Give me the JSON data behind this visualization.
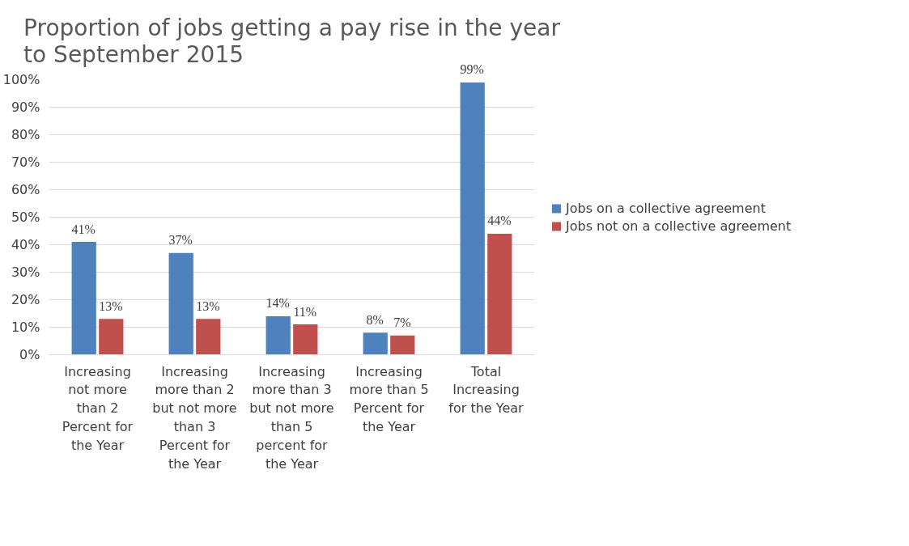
{
  "chart_data": {
    "type": "bar",
    "title": "Proportion of jobs getting a pay rise in the year to September 2015",
    "categories": [
      "Increasing not more than 2 Percent for the Year",
      "Increasing more than 2 but not more than 3 Percent for the Year",
      "Increasing more than 3 but not more than 5 percent for the Year",
      "Increasing more than 5 Percent for the Year",
      "Total Increasing for the Year"
    ],
    "series": [
      {
        "name": "Jobs on a collective agreement",
        "color": "#4f81bd",
        "values": [
          41,
          37,
          14,
          8,
          99
        ],
        "value_labels": [
          "41%",
          "37%",
          "14%",
          "8%",
          "99%"
        ]
      },
      {
        "name": "Jobs not on a collective agreement",
        "color": "#c0504d",
        "values": [
          13,
          13,
          11,
          7,
          44
        ],
        "value_labels": [
          "13%",
          "13%",
          "11%",
          "7%",
          "44%"
        ]
      }
    ],
    "ylim": [
      0,
      100
    ],
    "yticks": [
      {
        "value": 0,
        "label": "0%"
      },
      {
        "value": 10,
        "label": "10%"
      },
      {
        "value": 20,
        "label": "20%"
      },
      {
        "value": 30,
        "label": "30%"
      },
      {
        "value": 40,
        "label": "40%"
      },
      {
        "value": 50,
        "label": "50%"
      },
      {
        "value": 60,
        "label": "60%"
      },
      {
        "value": 70,
        "label": "70%"
      },
      {
        "value": 80,
        "label": "80%"
      },
      {
        "value": 90,
        "label": "90%"
      },
      {
        "value": 100,
        "label": "100%"
      }
    ],
    "grid": "y",
    "legend": "right",
    "data_labels": true
  }
}
